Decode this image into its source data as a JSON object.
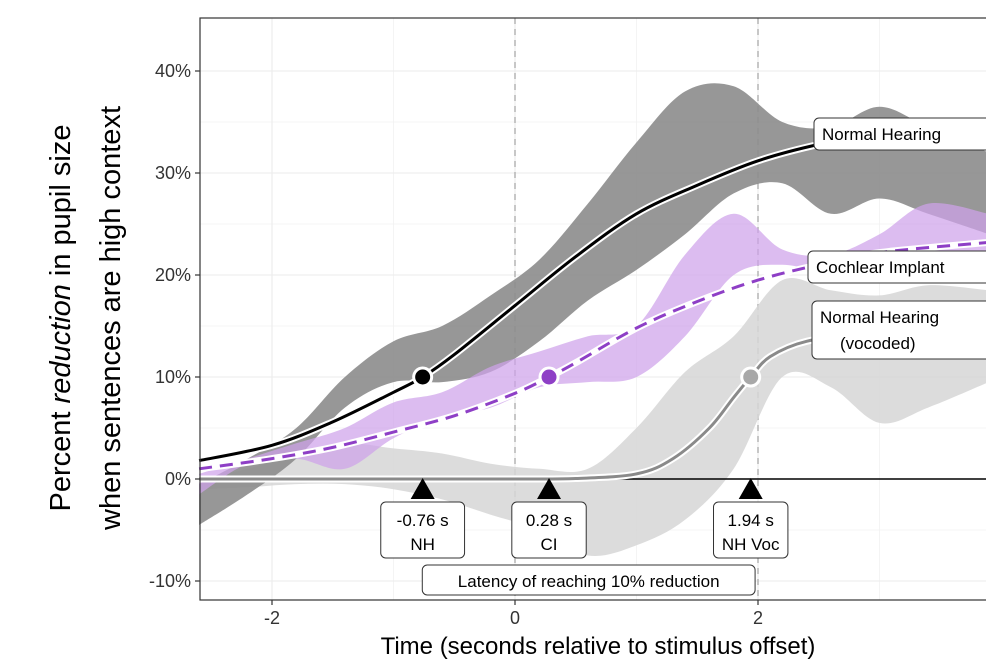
{
  "chart_data": {
    "type": "line",
    "xlabel": "Time (seconds relative to stimulus offset)",
    "ylabel": {
      "line1_prefix": "Percent ",
      "line1_emphasis": "reduction",
      "line1_suffix": " in pupil size",
      "line2": "when sentences are high context"
    },
    "xlim": [
      -2.6,
      3.9
    ],
    "ylim": [
      -11,
      45
    ],
    "x_ticks": [
      -2,
      0,
      2
    ],
    "x_tick_labels": [
      "-2",
      "0",
      "2"
    ],
    "y_ticks": [
      -10,
      0,
      10,
      20,
      30,
      40
    ],
    "y_tick_labels": [
      "-10%",
      "0%",
      "10%",
      "20%",
      "30%",
      "40%"
    ],
    "vertical_reference_lines": [
      0,
      2
    ],
    "grid": true,
    "colors": {
      "nh": "#000000",
      "nh_band": "#8c8c8c",
      "ci": "#8e3fc6",
      "ci_band": "#cfa2ea",
      "voc": "#8a8a8a",
      "voc_band": "#d6d6d6"
    },
    "series": [
      {
        "key": "nh",
        "name": "Normal Hearing",
        "style": "solid",
        "x": [
          -2.6,
          -2.0,
          -1.5,
          -1.0,
          -0.76,
          -0.5,
          0.0,
          0.5,
          1.0,
          1.5,
          2.0,
          2.5,
          3.0,
          3.9
        ],
        "y": [
          1.8,
          3.3,
          5.6,
          8.5,
          10.0,
          12.2,
          17.0,
          21.8,
          26.0,
          28.8,
          31.2,
          32.8,
          33.8,
          34.4
        ],
        "band_x": [
          -2.6,
          -2.2,
          -1.8,
          -1.4,
          -1.0,
          -0.6,
          -0.2,
          0.2,
          0.6,
          1.0,
          1.4,
          1.8,
          2.2,
          2.6,
          3.0,
          3.4,
          3.9
        ],
        "band_lower": [
          -4.5,
          -1.5,
          2.0,
          7.0,
          9.5,
          9.5,
          10.5,
          13.5,
          17.5,
          20.5,
          24.0,
          28.0,
          29.0,
          26.0,
          27.5,
          26.0,
          24.0
        ],
        "band_upper": [
          -0.5,
          2.0,
          5.0,
          10.0,
          13.5,
          15.0,
          18.0,
          21.5,
          27.0,
          33.0,
          38.0,
          38.5,
          35.0,
          34.5,
          36.5,
          34.5,
          32.0
        ]
      },
      {
        "key": "ci",
        "name": "Cochlear Implant",
        "style": "dashed",
        "x": [
          -2.6,
          -2.0,
          -1.5,
          -1.0,
          -0.5,
          0.0,
          0.28,
          0.5,
          1.0,
          1.5,
          2.0,
          2.5,
          3.0,
          3.9
        ],
        "y": [
          1.0,
          2.0,
          3.1,
          4.6,
          6.2,
          8.4,
          10.0,
          11.4,
          14.8,
          17.4,
          19.5,
          21.0,
          22.2,
          23.2
        ],
        "band_x": [
          -2.6,
          -2.2,
          -1.8,
          -1.4,
          -1.0,
          -0.6,
          -0.2,
          0.2,
          0.6,
          1.0,
          1.4,
          1.8,
          2.2,
          2.6,
          3.0,
          3.4,
          3.9
        ],
        "band_lower": [
          -1.5,
          1.5,
          2.0,
          1.0,
          4.0,
          6.0,
          7.0,
          9.0,
          9.5,
          10.0,
          14.0,
          20.0,
          21.0,
          20.0,
          19.5,
          21.0,
          20.5
        ],
        "band_upper": [
          0.5,
          2.0,
          3.5,
          5.0,
          7.5,
          8.5,
          11.0,
          12.5,
          14.0,
          15.0,
          22.0,
          26.0,
          22.5,
          22.0,
          24.0,
          27.0,
          26.0
        ]
      },
      {
        "key": "voc",
        "name": "Normal Hearing (vocoded)",
        "style": "solid",
        "x": [
          -2.6,
          -1.0,
          0.0,
          0.5,
          1.0,
          1.3,
          1.6,
          1.8,
          1.94,
          2.1,
          2.4,
          2.8,
          3.9
        ],
        "y": [
          0.0,
          0.0,
          0.0,
          0.05,
          0.5,
          2.0,
          5.0,
          8.0,
          10.0,
          12.0,
          13.5,
          14.0,
          14.3
        ],
        "band_x": [
          -2.6,
          -2.2,
          -1.8,
          -1.4,
          -1.0,
          -0.6,
          -0.2,
          0.2,
          0.6,
          1.0,
          1.4,
          1.8,
          2.2,
          2.6,
          3.0,
          3.4,
          3.9
        ],
        "band_lower": [
          -1.0,
          -0.8,
          -0.5,
          -0.5,
          -1.0,
          -2.0,
          -3.5,
          -5.0,
          -7.5,
          -6.5,
          -4.0,
          1.0,
          10.0,
          9.0,
          5.5,
          7.0,
          9.5
        ],
        "band_upper": [
          0.0,
          1.0,
          2.5,
          3.5,
          3.0,
          2.5,
          1.5,
          1.0,
          1.0,
          5.0,
          10.5,
          14.0,
          19.5,
          18.5,
          18.0,
          19.0,
          18.5
        ]
      }
    ],
    "points": [
      {
        "series": "nh",
        "x": -0.76,
        "y": 10
      },
      {
        "series": "ci",
        "x": 0.28,
        "y": 10
      },
      {
        "series": "voc",
        "x": 1.94,
        "y": 10
      }
    ],
    "line_labels": [
      {
        "series": "nh",
        "lines": [
          "Normal Hearing"
        ]
      },
      {
        "series": "ci",
        "lines": [
          "Cochlear Implant"
        ]
      },
      {
        "series": "voc",
        "lines": [
          "Normal Hearing",
          "(vocoded)"
        ]
      }
    ],
    "latency_markers": [
      {
        "x": -0.76,
        "value": "-0.76 s",
        "group": "NH"
      },
      {
        "x": 0.28,
        "value": "0.28 s",
        "group": "CI"
      },
      {
        "x": 1.94,
        "value": "1.94 s",
        "group": "NH Voc"
      }
    ],
    "latency_caption": "Latency of reaching 10% reduction"
  }
}
